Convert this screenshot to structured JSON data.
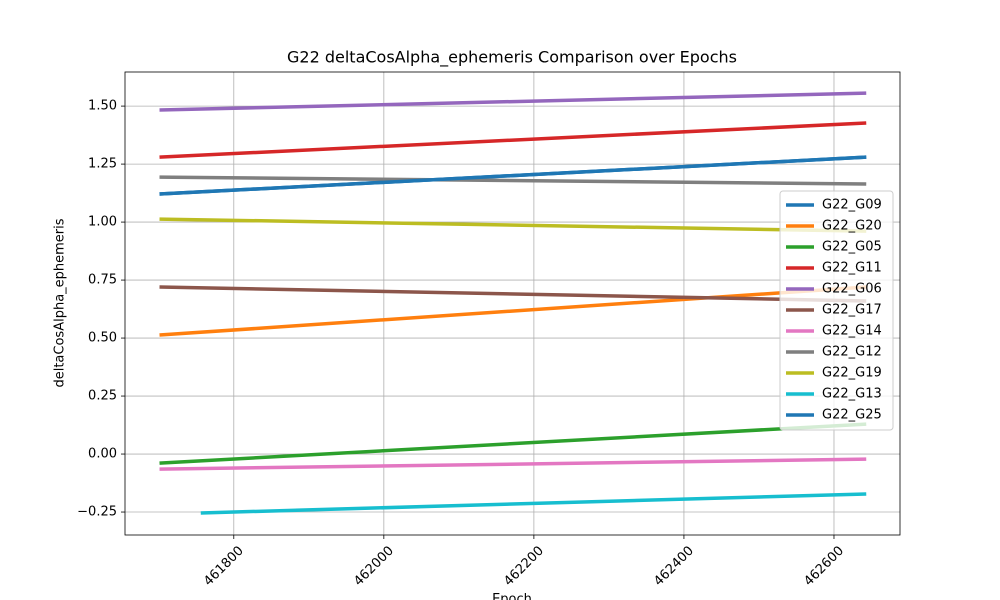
{
  "chart_data": {
    "type": "line",
    "title": "G22 deltaCosAlpha_ephemeris Comparison over Epochs",
    "x_label": "Epoch",
    "y_label": "deltaCosAlpha_ephemeris",
    "xlim": [
      461655,
      462688
    ],
    "ylim": [
      -0.349,
      1.647
    ],
    "xticks": [
      461800,
      462000,
      462200,
      462400,
      462600
    ],
    "yticks": [
      {
        "value": 1.5,
        "label": "1.50"
      },
      {
        "value": 1.25,
        "label": "1.25"
      },
      {
        "value": 1.0,
        "label": "1.00"
      },
      {
        "value": 0.75,
        "label": "0.75"
      },
      {
        "value": 0.5,
        "label": "0.50"
      },
      {
        "value": 0.25,
        "label": "0.25"
      },
      {
        "value": 0.0,
        "label": "0.00"
      },
      {
        "value": -0.25,
        "label": "−0.25"
      }
    ],
    "grid": true,
    "legend": "right",
    "series": [
      {
        "name": "G22_G09",
        "color": "#1f77b4",
        "x": [
          461701,
          462643
        ],
        "values": [
          1.121,
          1.28
        ]
      },
      {
        "name": "G22_G20",
        "color": "#ff7f0e",
        "x": [
          461701,
          462643
        ],
        "values": [
          0.513,
          0.72
        ]
      },
      {
        "name": "G22_G05",
        "color": "#2ca02c",
        "x": [
          461701,
          462643
        ],
        "values": [
          -0.039,
          0.129
        ]
      },
      {
        "name": "G22_G11",
        "color": "#d62728",
        "x": [
          461701,
          462643
        ],
        "values": [
          1.28,
          1.427
        ]
      },
      {
        "name": "G22_G06",
        "color": "#9467bd",
        "x": [
          461701,
          462643
        ],
        "values": [
          1.483,
          1.556
        ]
      },
      {
        "name": "G22_G17",
        "color": "#8c564b",
        "x": [
          461701,
          462643
        ],
        "values": [
          0.72,
          0.66
        ]
      },
      {
        "name": "G22_G14",
        "color": "#e377c2",
        "x": [
          461701,
          462643
        ],
        "values": [
          -0.065,
          -0.022
        ]
      },
      {
        "name": "G22_G12",
        "color": "#7f7f7f",
        "x": [
          461701,
          462643
        ],
        "values": [
          1.194,
          1.164
        ]
      },
      {
        "name": "G22_G19",
        "color": "#bcbd22",
        "x": [
          461701,
          462643
        ],
        "values": [
          1.013,
          0.961
        ]
      },
      {
        "name": "G22_G13",
        "color": "#17becf",
        "x": [
          461756,
          462643
        ],
        "values": [
          -0.254,
          -0.172
        ]
      },
      {
        "name": "G22_G25",
        "color": "#1f77b4",
        "x": [
          461701,
          462643
        ],
        "values": [
          1.121,
          1.28
        ]
      }
    ]
  }
}
